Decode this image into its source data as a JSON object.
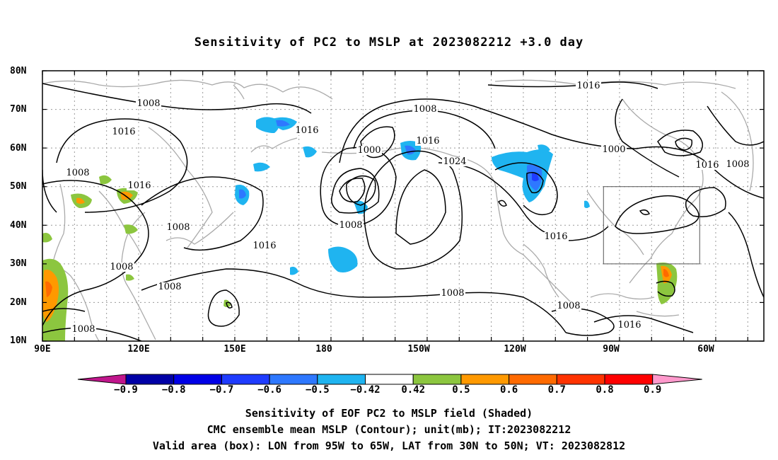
{
  "title": "Sensitivity of PC2 to MSLP at 2023082212 +3.0 day",
  "lat_labels": [
    "80N",
    "70N",
    "60N",
    "50N",
    "40N",
    "30N",
    "20N",
    "10N"
  ],
  "lon_labels": [
    "90E",
    "120E",
    "150E",
    "180",
    "150W",
    "120W",
    "90W",
    "60W"
  ],
  "contour_labels": [
    "1008",
    "1016",
    "1008",
    "1016",
    "1008",
    "1008",
    "1008",
    "1008",
    "1016",
    "1016",
    "1000",
    "1008",
    "1016",
    "1024",
    "1008",
    "1016",
    "1000",
    "1016",
    "1008",
    "1016",
    "1008",
    "1008",
    "1016"
  ],
  "colorbar": {
    "labels": [
      "-0.9",
      "-0.8",
      "-0.7",
      "-0.6",
      "-0.5",
      "-0.42",
      "0.42",
      "0.5",
      "0.6",
      "0.7",
      "0.8",
      "0.9"
    ],
    "colors": [
      "#c0168c",
      "#0000a6",
      "#0000e6",
      "#1f3cff",
      "#2e78ff",
      "#1fb4f0",
      "#ffffff",
      "#8cc63f",
      "#ff9900",
      "#ff6a00",
      "#ff3300",
      "#ff0000",
      "#ff99cc"
    ]
  },
  "valid_box": {
    "lon_west": -95,
    "lon_east": -65,
    "lat_south": 30,
    "lat_north": 50
  },
  "captions": [
    "Sensitivity of EOF PC2 to MSLP field (Shaded)",
    "CMC ensemble mean MSLP (Contour); unit(mb); IT:2023082212",
    "Valid area (box): LON from 95W to 65W, LAT from 30N to 50N; VT: 2023082812"
  ]
}
